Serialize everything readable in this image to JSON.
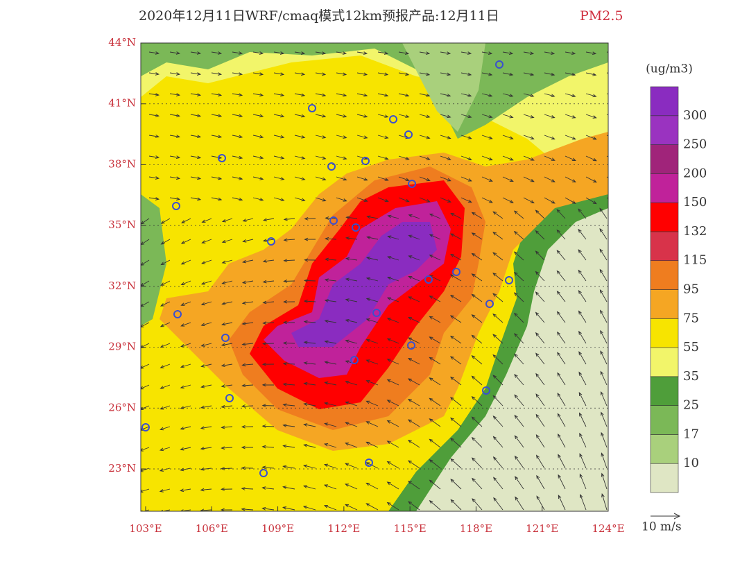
{
  "title": "2020年12月11日WRF/cmaq模式12km预报产品:12月11日",
  "variable": "PM2.5",
  "unit": "(ug/m3)",
  "lat_ticks": [
    {
      "value": 44,
      "label": "44°N"
    },
    {
      "value": 41,
      "label": "41°N"
    },
    {
      "value": 38,
      "label": "38°N"
    },
    {
      "value": 35,
      "label": "35°N"
    },
    {
      "value": 32,
      "label": "32°N"
    },
    {
      "value": 29,
      "label": "29°N"
    },
    {
      "value": 26,
      "label": "26°N"
    },
    {
      "value": 23,
      "label": "23°N"
    }
  ],
  "lon_ticks": [
    {
      "value": 103,
      "label": "103°E"
    },
    {
      "value": 106,
      "label": "106°E"
    },
    {
      "value": 109,
      "label": "109°E"
    },
    {
      "value": 112,
      "label": "112°E"
    },
    {
      "value": 115,
      "label": "115°E"
    },
    {
      "value": 118,
      "label": "118°E"
    },
    {
      "value": 121,
      "label": "121°E"
    },
    {
      "value": 124,
      "label": "124°E"
    }
  ],
  "colorbar": {
    "levels": [
      10,
      17,
      25,
      35,
      55,
      75,
      95,
      115,
      132,
      150,
      200,
      250,
      300
    ],
    "colors": [
      "#dfe6c4",
      "#a9d07c",
      "#7bb857",
      "#4f9e3a",
      "#f2f56a",
      "#f7e400",
      "#f5a623",
      "#ef7d1f",
      "#d8334a",
      "#ff0000",
      "#c0229a",
      "#a0247a",
      "#9a33c0",
      "#8a2cc0"
    ]
  },
  "wind_reference": "10 m/s"
}
